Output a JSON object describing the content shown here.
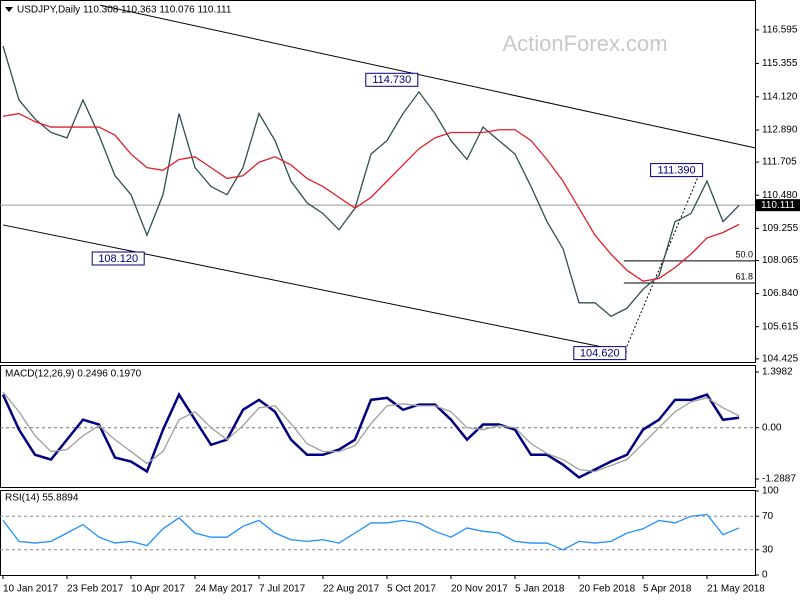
{
  "chart_data": [
    {
      "type": "line",
      "title": "USDJPY,Daily  110.308 110.363 110.076 110.111",
      "watermark": "ActionForex.com",
      "categories": [
        "10 Jan 2017",
        null,
        null,
        null,
        "23 Feb 2017",
        null,
        null,
        null,
        "10 Apr 2017",
        null,
        null,
        null,
        "24 May 2017",
        null,
        null,
        null,
        "7 Jul 2017",
        null,
        null,
        null,
        "22 Aug 2017",
        null,
        null,
        null,
        "5 Oct 2017",
        null,
        null,
        null,
        "20 Nov 2017",
        null,
        null,
        null,
        "5 Jan 2018",
        null,
        null,
        null,
        "20 Feb 2018",
        null,
        null,
        null,
        "5 Apr 2018",
        null,
        null,
        null,
        "21 May 2018",
        null,
        null
      ],
      "series": [
        {
          "color": "#2f4f4f",
          "values": [
            116.0,
            114.0,
            113.3,
            112.8,
            112.6,
            114.0,
            112.7,
            111.2,
            110.5,
            109.0,
            110.5,
            113.5,
            111.5,
            110.8,
            110.5,
            111.5,
            113.5,
            112.5,
            111.0,
            110.2,
            109.8,
            109.2,
            110.0,
            112.0,
            112.5,
            113.5,
            114.3,
            113.5,
            112.5,
            111.8,
            113.0,
            112.5,
            112.0,
            110.8,
            109.5,
            108.5,
            106.5,
            106.5,
            106.0,
            106.3,
            107.0,
            107.5,
            109.5,
            109.8,
            111.0,
            109.5,
            110.1
          ]
        },
        {
          "color": "#e0202a",
          "values": [
            113.4,
            113.5,
            113.2,
            113.0,
            113.0,
            113.0,
            113.0,
            112.7,
            112.0,
            111.5,
            111.4,
            111.8,
            111.9,
            111.5,
            111.1,
            111.2,
            111.7,
            111.9,
            111.6,
            111.1,
            110.8,
            110.4,
            110.0,
            110.4,
            111.0,
            111.6,
            112.2,
            112.6,
            112.8,
            112.8,
            112.8,
            112.9,
            112.9,
            112.5,
            111.8,
            111.0,
            110.0,
            109.0,
            108.3,
            107.7,
            107.3,
            107.4,
            107.8,
            108.3,
            108.9,
            109.1,
            109.4
          ]
        }
      ],
      "ylim": [
        104.31,
        117.7
      ],
      "yticks": [
        116.595,
        115.355,
        {
          "value": 114.12,
          "label": "114.120"
        },
        {
          "value": 112.89,
          "label": "112.890"
        },
        111.705,
        {
          "value": 110.48,
          "label": "110.480"
        },
        109.255,
        108.065,
        {
          "value": 106.84,
          "label": "106.840"
        },
        105.615,
        104.425
      ],
      "current_price": 110.111,
      "annotations": [
        {
          "x": 25.8,
          "value": 114.73,
          "label": "114.730"
        },
        {
          "x": 8.7,
          "value": 108.12,
          "label": "108.120"
        },
        {
          "x": 43.6,
          "value": 111.39,
          "label": "111.390"
        },
        {
          "x": 38.8,
          "value": 104.62,
          "label": "104.620"
        }
      ],
      "fib_levels": [
        {
          "label": "50.0",
          "value": 108.05
        },
        {
          "label": "61.8",
          "value": 107.23
        }
      ],
      "trendlines": [
        {
          "x": [
            6.06,
            47
          ],
          "values": [
            117.51,
            112.23
          ]
        },
        {
          "x": [
            0,
            39
          ],
          "values": [
            109.38,
            104.68
          ]
        }
      ]
    },
    {
      "type": "line",
      "title": "MACD(12,26,9) 0.2496 0.1970",
      "series": [
        {
          "color": "#000080",
          "values": [
            0.83,
            -0.05,
            -0.68,
            -0.8,
            -0.3,
            0.2,
            0.08,
            -0.75,
            -0.85,
            -1.1,
            -0.05,
            0.83,
            0.2,
            -0.43,
            -0.3,
            0.45,
            0.7,
            0.4,
            -0.3,
            -0.68,
            -0.68,
            -0.55,
            -0.3,
            0.7,
            0.75,
            0.45,
            0.58,
            0.58,
            0.2,
            -0.3,
            0.08,
            0.08,
            -0.05,
            -0.68,
            -0.68,
            -0.93,
            -1.25,
            -1.05,
            -0.85,
            -0.68,
            -0.05,
            0.2,
            0.7,
            0.7,
            0.83,
            0.2,
            0.25
          ]
        },
        {
          "color": "#a0a0a0",
          "values": [
            0.9,
            0.4,
            -0.2,
            -0.6,
            -0.55,
            -0.2,
            0.05,
            -0.3,
            -0.6,
            -0.9,
            -0.6,
            0.2,
            0.4,
            0.0,
            -0.3,
            0.05,
            0.5,
            0.55,
            0.1,
            -0.4,
            -0.6,
            -0.6,
            -0.45,
            0.1,
            0.55,
            0.6,
            0.55,
            0.55,
            0.4,
            0.0,
            -0.05,
            0.05,
            0.0,
            -0.4,
            -0.65,
            -0.8,
            -1.05,
            -1.1,
            -0.95,
            -0.8,
            -0.4,
            0.0,
            0.4,
            0.65,
            0.75,
            0.5,
            0.3
          ]
        }
      ],
      "ylim": [
        -1.49,
        1.55
      ],
      "yticks": [
        1.3982,
        {
          "value": 0,
          "label": "0.00"
        },
        -1.2887
      ]
    },
    {
      "type": "line",
      "title": "RSI(14) 55.8894",
      "series": [
        {
          "color": "#1e90ff",
          "values": [
            65,
            40,
            38,
            40,
            50,
            60,
            45,
            38,
            40,
            35,
            55,
            68,
            50,
            45,
            45,
            58,
            65,
            50,
            42,
            40,
            42,
            38,
            50,
            62,
            62,
            65,
            62,
            52,
            45,
            56,
            52,
            50,
            40,
            38,
            38,
            30,
            40,
            38,
            40,
            50,
            55,
            65,
            62,
            70,
            72,
            48,
            56
          ]
        }
      ],
      "ylim": [
        0,
        100
      ],
      "yticks": [
        0,
        30,
        70,
        100
      ],
      "levels": [
        30,
        70
      ]
    }
  ]
}
